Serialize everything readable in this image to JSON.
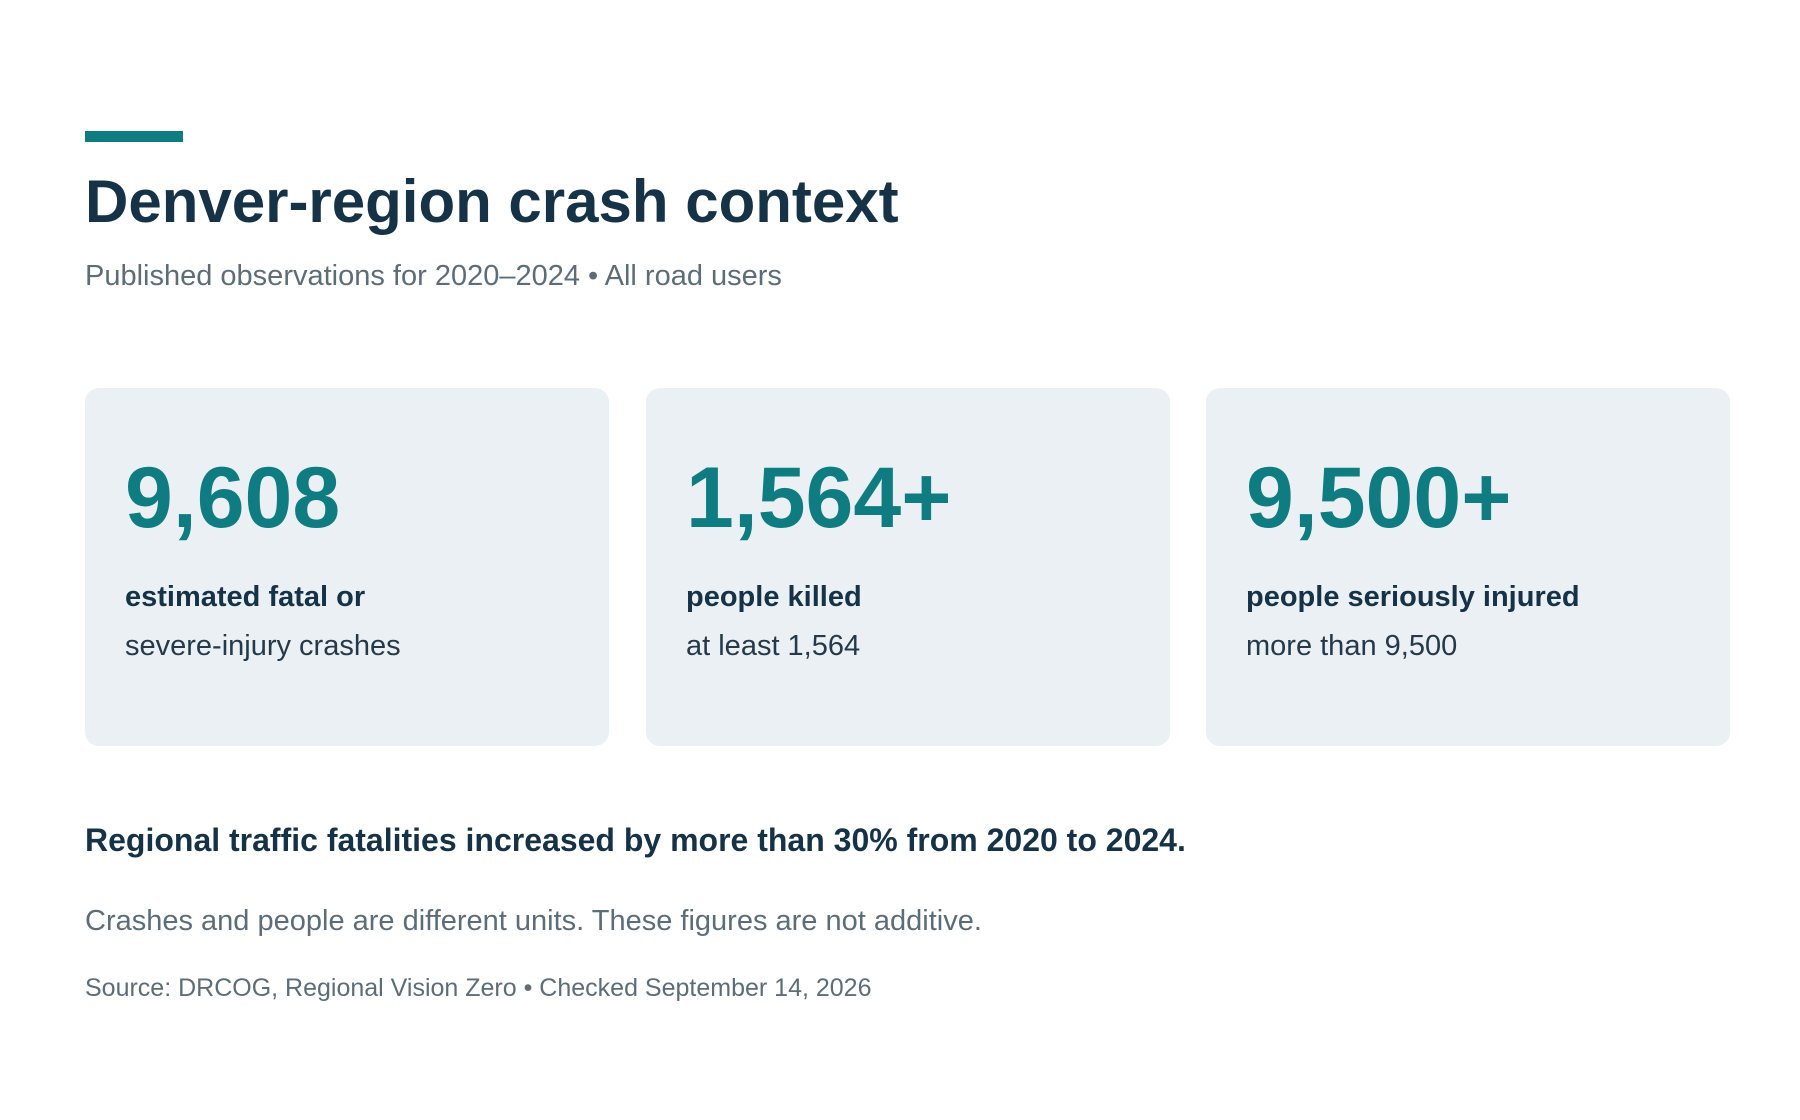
{
  "colors": {
    "accent": "#0e7c80",
    "heading": "#163246",
    "muted": "#5d6d78",
    "card_background": "#eaf0f4"
  },
  "header": {
    "title": "Denver-region crash context",
    "subtitle": "Published observations for 2020–2024 • All road users"
  },
  "stats": [
    {
      "value": "9,608",
      "label": "estimated fatal or",
      "detail": "severe-injury crashes"
    },
    {
      "value": "1,564+",
      "label": "people killed",
      "detail": "at least 1,564"
    },
    {
      "value": "9,500+",
      "label": "people seriously injured",
      "detail": "more than 9,500"
    }
  ],
  "headline": "Regional traffic fatalities increased by more than 30% from 2020 to 2024.",
  "note": "Crashes and people are different units. These figures are not additive.",
  "source": "Source: DRCOG, Regional Vision Zero • Checked September 14, 2026"
}
